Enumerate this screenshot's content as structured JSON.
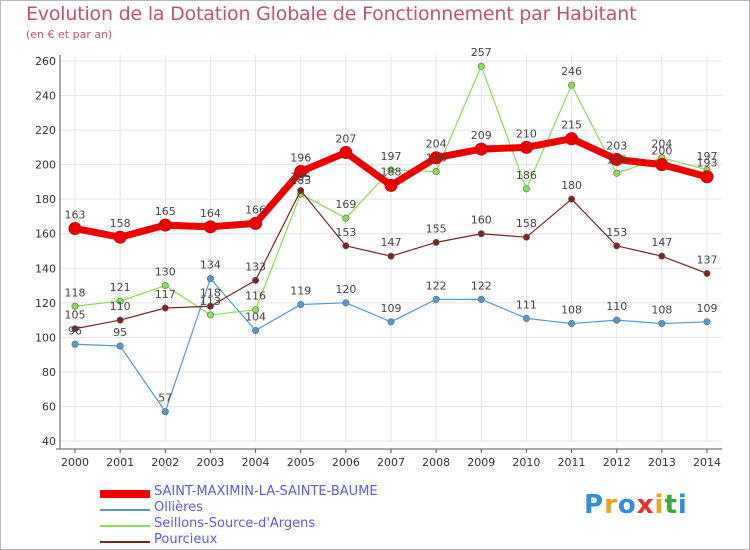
{
  "title": "Evolution de la Dotation Globale de Fonctionnement par Habitant",
  "subtitle": "(en € et par an)",
  "logo": {
    "letters": [
      {
        "ch": "P",
        "color": "#2e8fe0"
      },
      {
        "ch": "r",
        "color": "#f0a020"
      },
      {
        "ch": "o",
        "color": "#2e8fe0"
      },
      {
        "ch": "x",
        "color": "#e83030"
      },
      {
        "ch": "i",
        "color": "#f0a020"
      },
      {
        "ch": "t",
        "color": "#3aaa3a"
      },
      {
        "ch": "i",
        "color": "#2e8fe0"
      }
    ]
  },
  "chart_data": {
    "type": "line",
    "title": "Evolution de la Dotation Globale de Fonctionnement par Habitant",
    "subtitle": "(en € et par an)",
    "x": [
      "2000",
      "2001",
      "2002",
      "2003",
      "2004",
      "2005",
      "2006",
      "2007",
      "2008",
      "2009",
      "2010",
      "2011",
      "2012",
      "2013",
      "2014"
    ],
    "ylim": [
      40,
      260
    ],
    "yticks": [
      "40",
      "60",
      "80",
      "100",
      "120",
      "140",
      "160",
      "180",
      "200",
      "220",
      "240",
      "260"
    ],
    "grid": true,
    "legend_position": "bottom-left",
    "series": [
      {
        "name": "SAINT-MAXIMIN-LA-SAINTE-BAUME",
        "color": "#ee0000",
        "values": [
          163,
          158,
          165,
          164,
          166,
          196,
          207,
          188,
          204,
          209,
          210,
          215,
          203,
          200,
          193
        ],
        "labels": [
          "163",
          "158",
          "165",
          "164",
          "166",
          "196",
          "207",
          "188",
          "204",
          "209",
          "210",
          "215",
          "203",
          "200",
          "193"
        ]
      },
      {
        "name": "Ollières",
        "color": "#5599cc",
        "values": [
          96,
          95,
          57,
          134,
          104,
          119,
          120,
          109,
          122,
          122,
          111,
          108,
          110,
          108,
          109
        ],
        "labels": [
          "96",
          "95",
          "57",
          "134",
          "104",
          "119",
          "120",
          "109",
          "122",
          "122",
          "111",
          "108",
          "110",
          "108",
          "109"
        ]
      },
      {
        "name": "Seillons-Source-d'Argens",
        "color": "#88dd55",
        "values": [
          118,
          121,
          130,
          113,
          116,
          183,
          169,
          197,
          196,
          257,
          186,
          246,
          195,
          204,
          197
        ],
        "labels": [
          "118",
          "121",
          "130",
          "113",
          "116",
          "183",
          "169",
          "197",
          "196",
          "257",
          "186",
          "246",
          "195",
          "204",
          "197"
        ]
      },
      {
        "name": "Pourcieux",
        "color": "#7a2424",
        "values": [
          105,
          110,
          117,
          118,
          133,
          185,
          153,
          147,
          155,
          160,
          158,
          180,
          153,
          147,
          137
        ],
        "labels": [
          "105",
          "110",
          "117",
          "118",
          "133",
          "185",
          "153",
          "147",
          "155",
          "160",
          "158",
          "180",
          "153",
          "147",
          "137"
        ]
      }
    ]
  }
}
